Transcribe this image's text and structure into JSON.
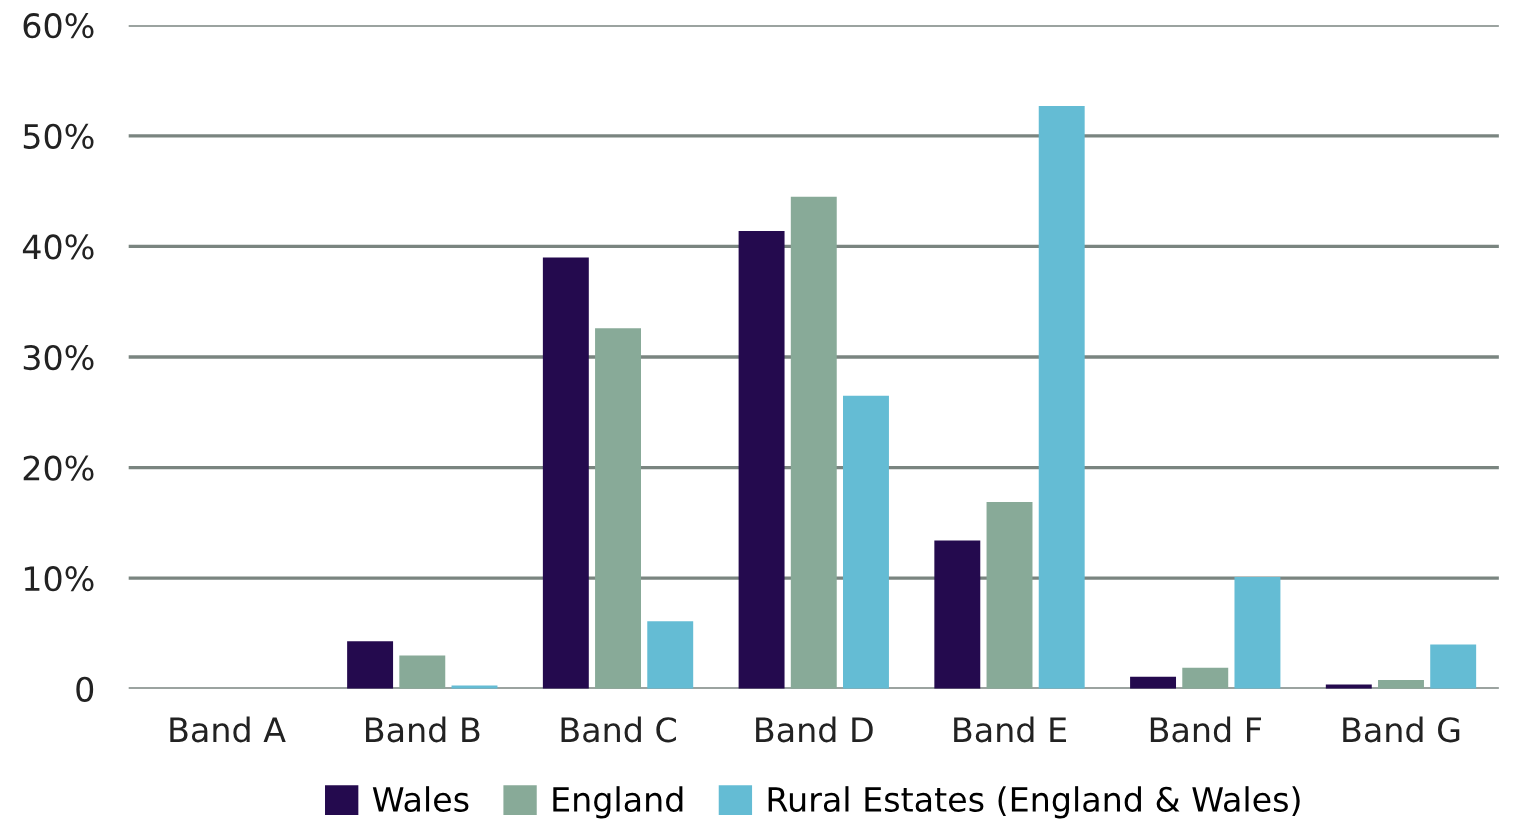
{
  "chart_data": {
    "type": "bar",
    "categories": [
      "Band A",
      "Band B",
      "Band C",
      "Band D",
      "Band E",
      "Band F",
      "Band G"
    ],
    "series": [
      {
        "name": "Wales",
        "color": "#240a4e",
        "values": [
          0,
          4.3,
          39,
          41.4,
          13.4,
          1.1,
          0.4
        ]
      },
      {
        "name": "England",
        "color": "#88aa98",
        "values": [
          null,
          3.0,
          32.6,
          44.5,
          16.9,
          1.9,
          0.8
        ]
      },
      {
        "name": "Rural Estates (England & Wales)",
        "color": "#64bcd4",
        "values": [
          0,
          0.3,
          6.1,
          26.5,
          52.7,
          10.1,
          4.0
        ]
      }
    ],
    "ylim": [
      0,
      60
    ],
    "yticks": [
      {
        "value": 0,
        "label": "0"
      },
      {
        "value": 10,
        "label": "10%"
      },
      {
        "value": 20,
        "label": "20%"
      },
      {
        "value": 30,
        "label": "30%"
      },
      {
        "value": 40,
        "label": "40%"
      },
      {
        "value": 50,
        "label": "50%"
      },
      {
        "value": 60,
        "label": "60%"
      }
    ],
    "grid": "y",
    "legend": "bottom"
  }
}
